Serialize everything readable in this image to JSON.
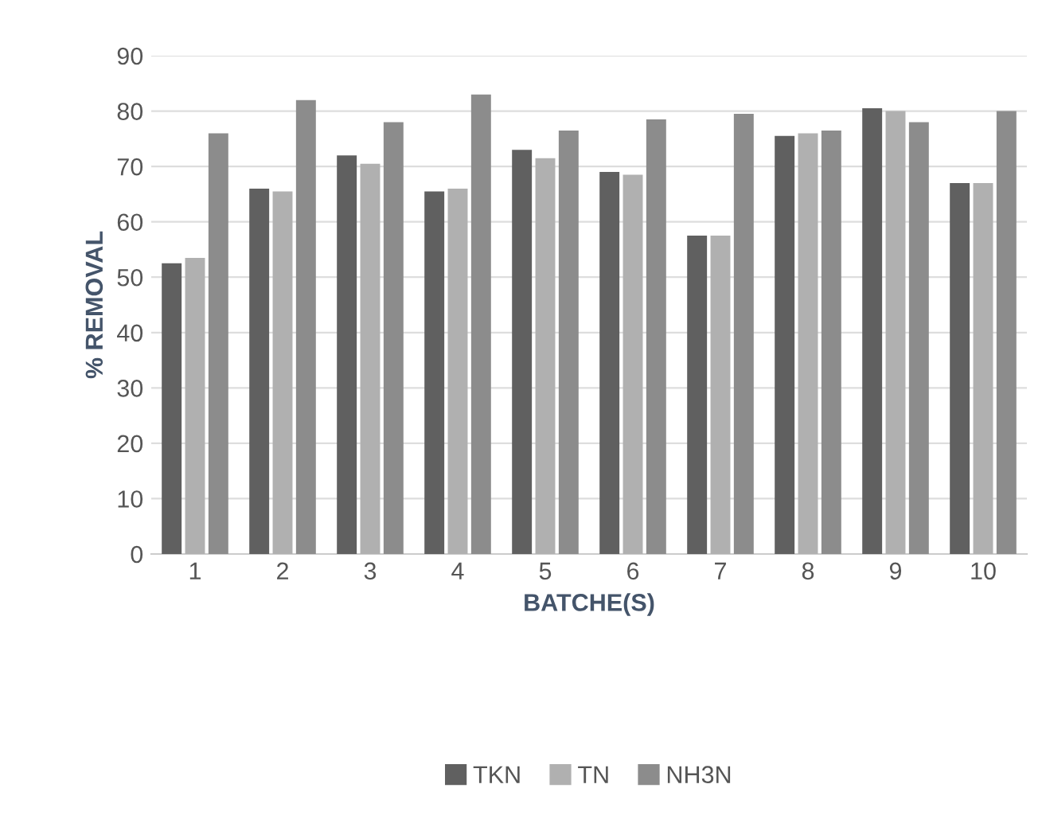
{
  "chart_data": {
    "type": "bar",
    "xlabel": "BATCHE(S)",
    "ylabel": "% REMOVAL",
    "categories": [
      "1",
      "2",
      "3",
      "4",
      "5",
      "6",
      "7",
      "8",
      "9",
      "10"
    ],
    "series": [
      {
        "name": "TKN",
        "color": "#606060",
        "values": [
          52.5,
          66,
          72,
          65.5,
          73,
          69,
          57.5,
          75.5,
          80.5,
          67
        ]
      },
      {
        "name": "TN",
        "color": "#b0b0b0",
        "values": [
          53.5,
          65.5,
          70.5,
          66,
          71.5,
          68.5,
          57.5,
          76,
          80,
          67
        ]
      },
      {
        "name": "NH3N",
        "color": "#8c8c8c",
        "values": [
          76,
          82,
          78,
          83,
          76.5,
          78.5,
          79.5,
          76.5,
          78,
          80
        ]
      }
    ],
    "ylim": [
      0,
      90
    ],
    "yticks": [
      0,
      10,
      20,
      30,
      40,
      50,
      60,
      70,
      80,
      90
    ],
    "grid": "y",
    "legend": "bottom"
  }
}
